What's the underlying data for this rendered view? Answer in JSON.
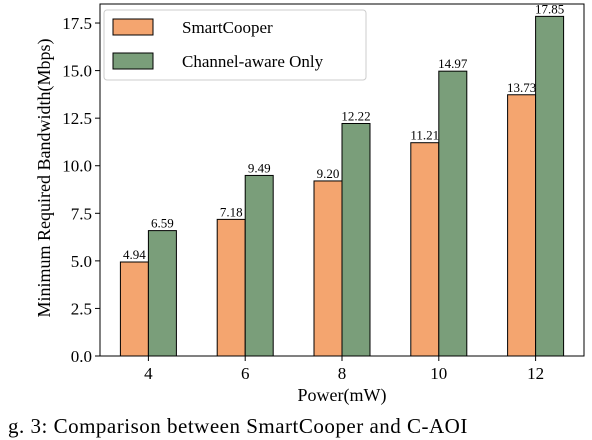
{
  "chart_data": {
    "type": "bar",
    "categories": [
      "4",
      "6",
      "8",
      "10",
      "12"
    ],
    "series": [
      {
        "name": "SmartCooper",
        "values": [
          4.94,
          7.18,
          9.2,
          11.21,
          13.73
        ],
        "labels": [
          "4.94",
          "7.18",
          "9.20",
          "11.21",
          "13.73"
        ],
        "color": "#f4a56f"
      },
      {
        "name": "Channel-aware Only",
        "values": [
          6.59,
          9.49,
          12.22,
          14.97,
          17.85
        ],
        "labels": [
          "6.59",
          "9.49",
          "12.22",
          "14.97",
          "17.85"
        ],
        "color": "#7a9e7a"
      }
    ],
    "xlabel": "Power(mW)",
    "ylabel": "Minimum Required Bandwidth(Mbps)",
    "ylim": [
      0,
      18.5
    ],
    "yticks": [
      "0.0",
      "2.5",
      "5.0",
      "7.5",
      "10.0",
      "12.5",
      "15.0",
      "17.5"
    ],
    "grid": false,
    "legend_position": "top-left"
  },
  "caption": "g. 3: Comparison between SmartCooper and C-AOI"
}
